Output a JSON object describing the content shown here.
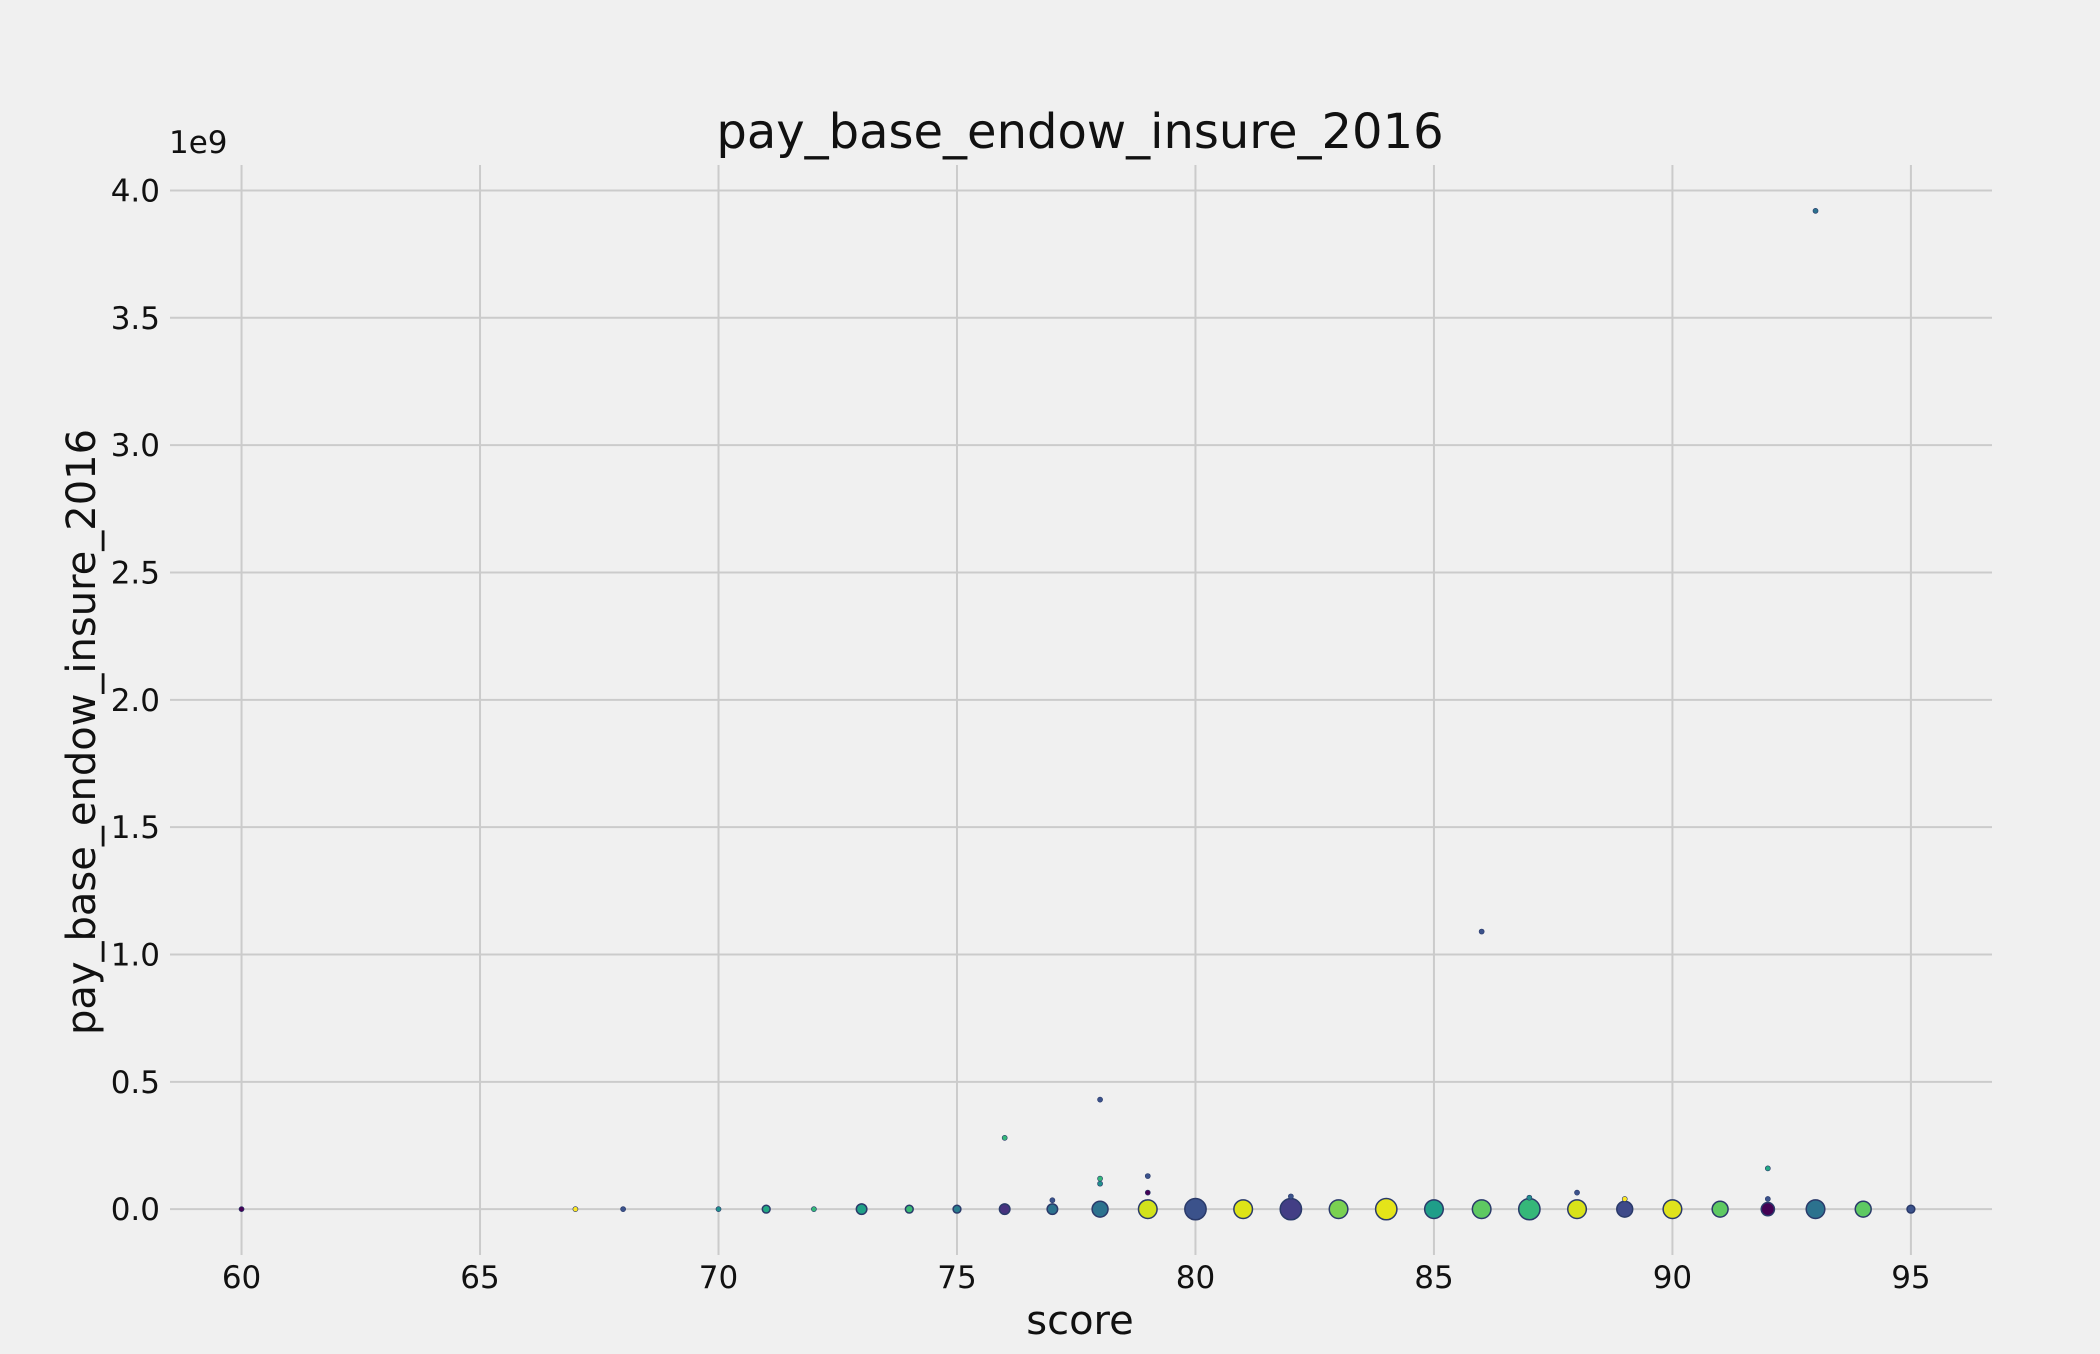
{
  "chart_data": {
    "type": "scatter",
    "title": "pay_base_endow_insure_2016",
    "xlabel": "score",
    "ylabel": "pay_base_endow_insure_2016",
    "y_offset_label": "1e9",
    "xlim": [
      58.5,
      96.7
    ],
    "ylim": [
      -0.18,
      4.1
    ],
    "xticks": [
      60,
      65,
      70,
      75,
      80,
      85,
      90,
      95
    ],
    "xtick_labels": [
      "60",
      "65",
      "70",
      "75",
      "80",
      "85",
      "90",
      "95"
    ],
    "yticks": [
      0.0,
      0.5,
      1.0,
      1.5,
      2.0,
      2.5,
      3.0,
      3.5,
      4.0
    ],
    "ytick_labels": [
      "0.0",
      "0.5",
      "1.0",
      "1.5",
      "2.0",
      "2.5",
      "3.0",
      "3.5",
      "4.0"
    ],
    "y_scale_note": "y values in units of 1e9",
    "grid": true,
    "legend": "none",
    "colormap": "viridis",
    "colors": {
      "background": "#f0f0f0",
      "grid": "#cbcbcb",
      "text": "#111111",
      "marker_edge": "#2a3a6a"
    },
    "points": [
      {
        "x": 60,
        "y": 0.0,
        "size": 1,
        "color": "#440154"
      },
      {
        "x": 67,
        "y": 0.0,
        "size": 1,
        "color": "#fde725"
      },
      {
        "x": 68,
        "y": 0.0,
        "size": 1,
        "color": "#3b528b"
      },
      {
        "x": 70,
        "y": 0.0,
        "size": 1,
        "color": "#21908d"
      },
      {
        "x": 71,
        "y": 0.0,
        "size": 2,
        "color": "#22a884"
      },
      {
        "x": 72,
        "y": 0.0,
        "size": 1,
        "color": "#35b779"
      },
      {
        "x": 73,
        "y": 0.0,
        "size": 3,
        "color": "#1fa187"
      },
      {
        "x": 74,
        "y": 0.0,
        "size": 2,
        "color": "#3aba76"
      },
      {
        "x": 75,
        "y": 0.0,
        "size": 2,
        "color": "#287c8e"
      },
      {
        "x": 76,
        "y": 0.0,
        "size": 3,
        "color": "#46327e"
      },
      {
        "x": 76,
        "y": 0.28,
        "size": 1,
        "color": "#35b779"
      },
      {
        "x": 77,
        "y": 0.0,
        "size": 3,
        "color": "#2c728e"
      },
      {
        "x": 77,
        "y": 0.035,
        "size": 1,
        "color": "#3b528b"
      },
      {
        "x": 78,
        "y": 0.0,
        "size": 5,
        "color": "#2c728e"
      },
      {
        "x": 78,
        "y": 0.1,
        "size": 1,
        "color": "#21908d"
      },
      {
        "x": 78,
        "y": 0.12,
        "size": 1,
        "color": "#35b779"
      },
      {
        "x": 78,
        "y": 0.43,
        "size": 1,
        "color": "#3b528b"
      },
      {
        "x": 79,
        "y": 0.0,
        "size": 6,
        "color": "#d2e21b"
      },
      {
        "x": 79,
        "y": 0.065,
        "size": 1,
        "color": "#440154"
      },
      {
        "x": 79,
        "y": 0.13,
        "size": 1,
        "color": "#3b528b"
      },
      {
        "x": 80,
        "y": 0.0,
        "size": 7,
        "color": "#3b528b"
      },
      {
        "x": 81,
        "y": 0.0,
        "size": 6,
        "color": "#dde318"
      },
      {
        "x": 82,
        "y": 0.0,
        "size": 7,
        "color": "#433e85"
      },
      {
        "x": 82,
        "y": 0.05,
        "size": 1,
        "color": "#3b528b"
      },
      {
        "x": 83,
        "y": 0.0,
        "size": 6,
        "color": "#7ad151"
      },
      {
        "x": 84,
        "y": 0.0,
        "size": 7,
        "color": "#e4e419"
      },
      {
        "x": 85,
        "y": 0.0,
        "size": 6,
        "color": "#1f9e89"
      },
      {
        "x": 86,
        "y": 0.0,
        "size": 6,
        "color": "#5ec962"
      },
      {
        "x": 86,
        "y": 1.09,
        "size": 1,
        "color": "#3b528b"
      },
      {
        "x": 87,
        "y": 0.0,
        "size": 7,
        "color": "#35b779"
      },
      {
        "x": 87,
        "y": 0.045,
        "size": 1,
        "color": "#21908d"
      },
      {
        "x": 88,
        "y": 0.0,
        "size": 6,
        "color": "#d8e219"
      },
      {
        "x": 88,
        "y": 0.065,
        "size": 1,
        "color": "#3b528b"
      },
      {
        "x": 89,
        "y": 0.0,
        "size": 5,
        "color": "#3e4a89"
      },
      {
        "x": 89,
        "y": 0.04,
        "size": 1,
        "color": "#fde725"
      },
      {
        "x": 90,
        "y": 0.0,
        "size": 6,
        "color": "#e0e31d"
      },
      {
        "x": 91,
        "y": 0.0,
        "size": 5,
        "color": "#5ec962"
      },
      {
        "x": 92,
        "y": 0.0,
        "size": 4,
        "color": "#440154"
      },
      {
        "x": 92,
        "y": 0.04,
        "size": 1,
        "color": "#3b528b"
      },
      {
        "x": 92,
        "y": 0.16,
        "size": 1,
        "color": "#22a884"
      },
      {
        "x": 93,
        "y": 0.0,
        "size": 6,
        "color": "#2c728e"
      },
      {
        "x": 93,
        "y": 3.92,
        "size": 1,
        "color": "#2c728e"
      },
      {
        "x": 94,
        "y": 0.0,
        "size": 5,
        "color": "#5ec962"
      },
      {
        "x": 95,
        "y": 0.0,
        "size": 2,
        "color": "#3b528b"
      }
    ]
  }
}
